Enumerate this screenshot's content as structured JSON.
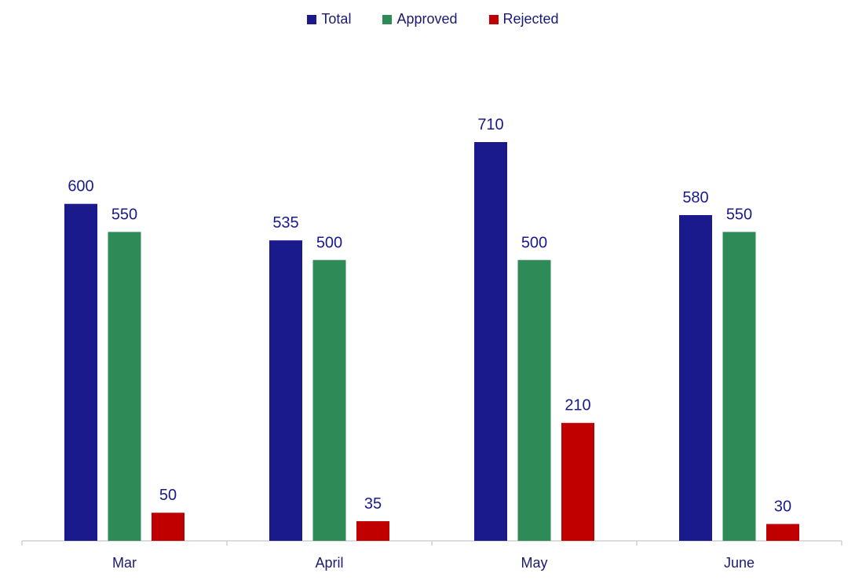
{
  "chart_data": {
    "type": "bar",
    "categories": [
      "Mar",
      "April",
      "May",
      "June"
    ],
    "series": [
      {
        "name": "Total",
        "color": "#1a1a8c",
        "values": [
          600,
          535,
          710,
          580
        ]
      },
      {
        "name": "Approved",
        "color": "#2e8b57",
        "values": [
          550,
          500,
          500,
          550
        ]
      },
      {
        "name": "Rejected",
        "color": "#c00000",
        "values": [
          50,
          35,
          210,
          30
        ]
      }
    ],
    "title": "",
    "xlabel": "",
    "ylabel": "",
    "ylim": [
      0,
      800
    ],
    "grid": false,
    "legend_position": "top"
  }
}
